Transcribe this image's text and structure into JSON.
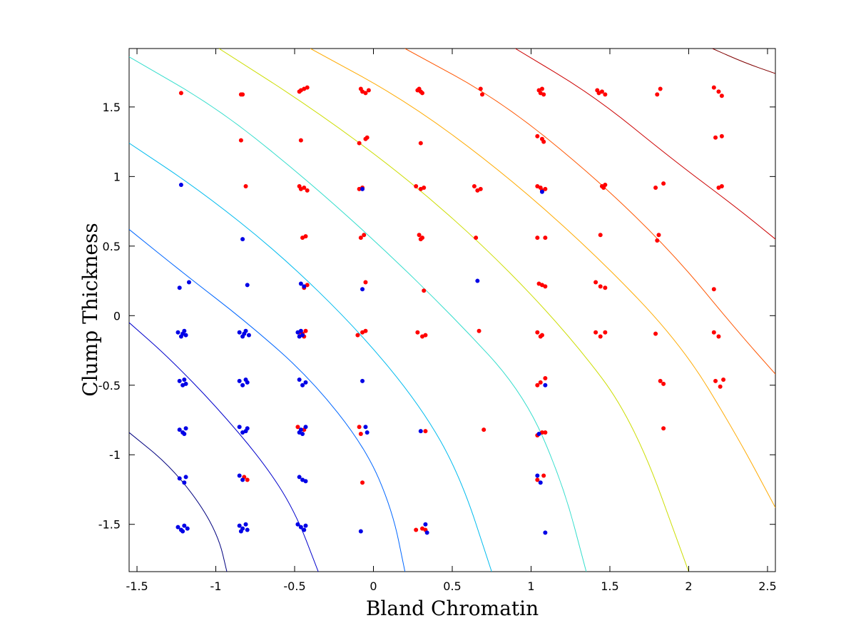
{
  "chart_data": {
    "type": "scatter",
    "title": "",
    "xlabel": "Bland Chromatin",
    "ylabel": "Clump Thickness",
    "xlim": [
      -1.55,
      2.55
    ],
    "ylim": [
      -1.84,
      1.92
    ],
    "x_ticks": [
      -1.5,
      -1,
      -0.5,
      0,
      0.5,
      1,
      1.5,
      2,
      2.5
    ],
    "y_ticks": [
      -1.5,
      -1,
      -0.5,
      0,
      0.5,
      1,
      1.5
    ],
    "x_tick_labels": [
      "-1.5",
      "-1",
      "-0.5",
      "0",
      "0.5",
      "1",
      "1.5",
      "2",
      "2.5"
    ],
    "y_tick_labels": [
      "-1.5",
      "-1",
      "-0.5",
      "0",
      "0.5",
      "1",
      "1.5"
    ],
    "grid": false,
    "legend": "none",
    "series": [
      {
        "color": "#ff0000",
        "points": [
          [
            -1.22,
            1.6
          ],
          [
            -0.84,
            1.59
          ],
          [
            -0.83,
            1.59
          ],
          [
            -0.47,
            1.61
          ],
          [
            -0.46,
            1.62
          ],
          [
            -0.44,
            1.63
          ],
          [
            -0.42,
            1.64
          ],
          [
            -0.08,
            1.63
          ],
          [
            -0.07,
            1.61
          ],
          [
            -0.05,
            1.6
          ],
          [
            -0.03,
            1.62
          ],
          [
            0.28,
            1.62
          ],
          [
            0.29,
            1.63
          ],
          [
            0.3,
            1.61
          ],
          [
            0.31,
            1.6
          ],
          [
            0.68,
            1.63
          ],
          [
            0.69,
            1.59
          ],
          [
            1.05,
            1.62
          ],
          [
            1.06,
            1.6
          ],
          [
            1.07,
            1.63
          ],
          [
            1.08,
            1.59
          ],
          [
            1.42,
            1.62
          ],
          [
            1.43,
            1.6
          ],
          [
            1.45,
            1.61
          ],
          [
            1.47,
            1.59
          ],
          [
            1.8,
            1.59
          ],
          [
            1.82,
            1.63
          ],
          [
            2.16,
            1.64
          ],
          [
            2.19,
            1.61
          ],
          [
            2.21,
            1.58
          ],
          [
            -0.84,
            1.26
          ],
          [
            -0.46,
            1.26
          ],
          [
            -0.09,
            1.24
          ],
          [
            -0.05,
            1.27
          ],
          [
            -0.04,
            1.28
          ],
          [
            0.3,
            1.24
          ],
          [
            1.04,
            1.29
          ],
          [
            1.07,
            1.27
          ],
          [
            1.08,
            1.25
          ],
          [
            2.17,
            1.28
          ],
          [
            2.21,
            1.29
          ],
          [
            -0.81,
            0.93
          ],
          [
            -0.47,
            0.93
          ],
          [
            -0.46,
            0.91
          ],
          [
            -0.44,
            0.92
          ],
          [
            -0.42,
            0.9
          ],
          [
            -0.09,
            0.91
          ],
          [
            -0.07,
            0.92
          ],
          [
            0.27,
            0.93
          ],
          [
            0.3,
            0.91
          ],
          [
            0.32,
            0.92
          ],
          [
            0.64,
            0.93
          ],
          [
            0.66,
            0.9
          ],
          [
            0.68,
            0.91
          ],
          [
            1.04,
            0.93
          ],
          [
            1.06,
            0.92
          ],
          [
            1.07,
            0.9
          ],
          [
            1.09,
            0.91
          ],
          [
            1.45,
            0.93
          ],
          [
            1.46,
            0.92
          ],
          [
            1.47,
            0.94
          ],
          [
            1.79,
            0.92
          ],
          [
            1.84,
            0.95
          ],
          [
            2.19,
            0.92
          ],
          [
            2.21,
            0.93
          ],
          [
            -0.45,
            0.56
          ],
          [
            -0.43,
            0.57
          ],
          [
            -0.08,
            0.56
          ],
          [
            -0.06,
            0.58
          ],
          [
            0.29,
            0.58
          ],
          [
            0.31,
            0.56
          ],
          [
            0.3,
            0.55
          ],
          [
            0.65,
            0.56
          ],
          [
            1.04,
            0.56
          ],
          [
            1.09,
            0.56
          ],
          [
            1.44,
            0.58
          ],
          [
            1.81,
            0.58
          ],
          [
            1.8,
            0.54
          ],
          [
            -0.44,
            0.2
          ],
          [
            -0.42,
            0.22
          ],
          [
            -0.05,
            0.24
          ],
          [
            0.32,
            0.18
          ],
          [
            1.05,
            0.23
          ],
          [
            1.07,
            0.22
          ],
          [
            1.09,
            0.21
          ],
          [
            1.41,
            0.24
          ],
          [
            1.44,
            0.21
          ],
          [
            1.47,
            0.2
          ],
          [
            2.16,
            0.19
          ],
          [
            -0.47,
            -0.12
          ],
          [
            -0.45,
            -0.13
          ],
          [
            -0.43,
            -0.11
          ],
          [
            -0.44,
            -0.15
          ],
          [
            -0.1,
            -0.14
          ],
          [
            -0.07,
            -0.12
          ],
          [
            -0.05,
            -0.11
          ],
          [
            0.28,
            -0.12
          ],
          [
            0.31,
            -0.15
          ],
          [
            0.33,
            -0.14
          ],
          [
            0.67,
            -0.11
          ],
          [
            1.04,
            -0.12
          ],
          [
            1.06,
            -0.15
          ],
          [
            1.07,
            -0.14
          ],
          [
            1.41,
            -0.12
          ],
          [
            1.44,
            -0.15
          ],
          [
            1.47,
            -0.12
          ],
          [
            1.79,
            -0.13
          ],
          [
            2.16,
            -0.12
          ],
          [
            2.19,
            -0.15
          ],
          [
            1.04,
            -0.5
          ],
          [
            1.06,
            -0.48
          ],
          [
            1.09,
            -0.45
          ],
          [
            1.82,
            -0.47
          ],
          [
            1.84,
            -0.49
          ],
          [
            2.17,
            -0.47
          ],
          [
            2.2,
            -0.51
          ],
          [
            2.22,
            -0.46
          ],
          [
            -0.48,
            -0.8
          ],
          [
            -0.44,
            -0.82
          ],
          [
            -0.09,
            -0.8
          ],
          [
            -0.08,
            -0.85
          ],
          [
            0.33,
            -0.83
          ],
          [
            0.7,
            -0.82
          ],
          [
            1.04,
            -0.86
          ],
          [
            1.07,
            -0.84
          ],
          [
            1.09,
            -0.84
          ],
          [
            1.84,
            -0.81
          ],
          [
            -0.82,
            -1.16
          ],
          [
            -0.8,
            -1.18
          ],
          [
            -0.07,
            -1.2
          ],
          [
            1.04,
            -1.18
          ],
          [
            1.08,
            -1.15
          ],
          [
            0.27,
            -1.54
          ],
          [
            0.31,
            -1.53
          ],
          [
            0.33,
            -1.54
          ]
        ]
      },
      {
        "color": "#0000e6",
        "points": [
          [
            -1.22,
            0.94
          ],
          [
            -0.83,
            0.55
          ],
          [
            -0.07,
            0.91
          ],
          [
            1.07,
            0.89
          ],
          [
            -1.23,
            0.2
          ],
          [
            -1.17,
            0.24
          ],
          [
            -0.8,
            0.22
          ],
          [
            -0.46,
            0.23
          ],
          [
            -0.44,
            0.21
          ],
          [
            -0.07,
            0.19
          ],
          [
            0.66,
            0.25
          ],
          [
            -1.24,
            -0.12
          ],
          [
            -1.22,
            -0.15
          ],
          [
            -1.2,
            -0.11
          ],
          [
            -1.19,
            -0.14
          ],
          [
            -1.21,
            -0.13
          ],
          [
            -0.85,
            -0.12
          ],
          [
            -0.83,
            -0.15
          ],
          [
            -0.81,
            -0.11
          ],
          [
            -0.79,
            -0.14
          ],
          [
            -0.82,
            -0.13
          ],
          [
            -0.48,
            -0.12
          ],
          [
            -0.47,
            -0.15
          ],
          [
            -0.46,
            -0.11
          ],
          [
            -0.45,
            -0.14
          ],
          [
            -1.23,
            -0.47
          ],
          [
            -1.21,
            -0.5
          ],
          [
            -1.2,
            -0.46
          ],
          [
            -1.19,
            -0.49
          ],
          [
            -0.85,
            -0.47
          ],
          [
            -0.83,
            -0.5
          ],
          [
            -0.81,
            -0.46
          ],
          [
            -0.8,
            -0.48
          ],
          [
            -0.47,
            -0.46
          ],
          [
            -0.45,
            -0.5
          ],
          [
            -0.43,
            -0.48
          ],
          [
            -0.07,
            -0.47
          ],
          [
            1.09,
            -0.5
          ],
          [
            -1.23,
            -0.82
          ],
          [
            -1.21,
            -0.84
          ],
          [
            -1.19,
            -0.81
          ],
          [
            -1.2,
            -0.85
          ],
          [
            -0.85,
            -0.8
          ],
          [
            -0.83,
            -0.84
          ],
          [
            -0.81,
            -0.83
          ],
          [
            -0.8,
            -0.81
          ],
          [
            -0.46,
            -0.82
          ],
          [
            -0.45,
            -0.85
          ],
          [
            -0.43,
            -0.8
          ],
          [
            -0.47,
            -0.84
          ],
          [
            -0.05,
            -0.8
          ],
          [
            -0.04,
            -0.84
          ],
          [
            0.3,
            -0.83
          ],
          [
            1.05,
            -0.85
          ],
          [
            -1.23,
            -1.17
          ],
          [
            -1.2,
            -1.2
          ],
          [
            -1.19,
            -1.16
          ],
          [
            -0.85,
            -1.15
          ],
          [
            -0.83,
            -1.18
          ],
          [
            -0.47,
            -1.16
          ],
          [
            -0.45,
            -1.18
          ],
          [
            -0.43,
            -1.19
          ],
          [
            1.04,
            -1.15
          ],
          [
            1.06,
            -1.2
          ],
          [
            -1.24,
            -1.52
          ],
          [
            -1.22,
            -1.54
          ],
          [
            -1.2,
            -1.51
          ],
          [
            -1.18,
            -1.53
          ],
          [
            -1.21,
            -1.55
          ],
          [
            -0.85,
            -1.51
          ],
          [
            -0.83,
            -1.53
          ],
          [
            -0.81,
            -1.5
          ],
          [
            -0.8,
            -1.54
          ],
          [
            -0.84,
            -1.55
          ],
          [
            -0.48,
            -1.5
          ],
          [
            -0.46,
            -1.52
          ],
          [
            -0.44,
            -1.54
          ],
          [
            -0.43,
            -1.51
          ],
          [
            -0.08,
            -1.55
          ],
          [
            0.33,
            -1.5
          ],
          [
            0.34,
            -1.56
          ],
          [
            1.09,
            -1.56
          ]
        ]
      }
    ],
    "contours": [
      {
        "color": "#00007f",
        "points": [
          [
            -1.55,
            -0.84
          ],
          [
            -1.3,
            -1.07
          ],
          [
            -1.1,
            -1.35
          ],
          [
            -0.98,
            -1.6
          ],
          [
            -0.93,
            -1.84
          ]
        ]
      },
      {
        "color": "#0000cc",
        "points": [
          [
            -1.55,
            -0.05
          ],
          [
            -1.3,
            -0.3
          ],
          [
            -1.0,
            -0.65
          ],
          [
            -0.7,
            -1.05
          ],
          [
            -0.5,
            -1.4
          ],
          [
            -0.35,
            -1.84
          ]
        ]
      },
      {
        "color": "#0066ff",
        "points": [
          [
            -1.55,
            0.62
          ],
          [
            -1.2,
            0.3
          ],
          [
            -0.8,
            -0.05
          ],
          [
            -0.4,
            -0.45
          ],
          [
            -0.05,
            -0.95
          ],
          [
            0.12,
            -1.4
          ],
          [
            0.2,
            -1.84
          ]
        ]
      },
      {
        "color": "#00bbee",
        "points": [
          [
            -1.55,
            1.24
          ],
          [
            -1.1,
            0.9
          ],
          [
            -0.6,
            0.45
          ],
          [
            -0.1,
            -0.1
          ],
          [
            0.3,
            -0.65
          ],
          [
            0.55,
            -1.15
          ],
          [
            0.75,
            -1.84
          ]
        ]
      },
      {
        "color": "#33ddcc",
        "points": [
          [
            -1.55,
            1.86
          ],
          [
            -1.0,
            1.5
          ],
          [
            -0.5,
            1.05
          ],
          [
            0.0,
            0.55
          ],
          [
            0.5,
            0.0
          ],
          [
            0.95,
            -0.55
          ],
          [
            1.2,
            -1.2
          ],
          [
            1.35,
            -1.84
          ]
        ]
      },
      {
        "color": "#ccdd00",
        "points": [
          [
            -0.98,
            1.92
          ],
          [
            -0.4,
            1.5
          ],
          [
            0.2,
            1.0
          ],
          [
            0.75,
            0.45
          ],
          [
            1.25,
            -0.15
          ],
          [
            1.65,
            -0.75
          ],
          [
            2.0,
            -1.84
          ]
        ]
      },
      {
        "color": "#ffaa00",
        "points": [
          [
            -0.4,
            1.92
          ],
          [
            0.2,
            1.55
          ],
          [
            0.8,
            1.05
          ],
          [
            1.4,
            0.45
          ],
          [
            1.95,
            -0.2
          ],
          [
            2.3,
            -0.85
          ],
          [
            2.55,
            -1.38
          ]
        ]
      },
      {
        "color": "#ff5500",
        "points": [
          [
            0.2,
            1.92
          ],
          [
            0.8,
            1.55
          ],
          [
            1.4,
            1.0
          ],
          [
            1.9,
            0.45
          ],
          [
            2.3,
            -0.1
          ],
          [
            2.55,
            -0.42
          ]
        ]
      },
      {
        "color": "#cc0000",
        "points": [
          [
            0.9,
            1.92
          ],
          [
            1.4,
            1.58
          ],
          [
            1.9,
            1.12
          ],
          [
            2.3,
            0.78
          ],
          [
            2.55,
            0.55
          ]
        ]
      },
      {
        "color": "#800000",
        "points": [
          [
            2.15,
            1.92
          ],
          [
            2.35,
            1.82
          ],
          [
            2.55,
            1.74
          ]
        ]
      }
    ]
  }
}
